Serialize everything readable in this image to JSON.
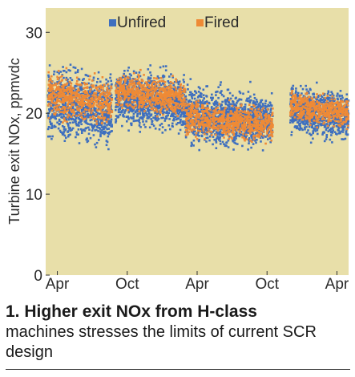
{
  "chart_data": {
    "type": "scatter",
    "ylabel": "Turbine exit NOx, ppmvdc",
    "ylim": [
      0,
      33
    ],
    "yticks": [
      0,
      10,
      20,
      30
    ],
    "xlim": [
      0,
      26
    ],
    "xticks": [
      {
        "label": "Apr",
        "x": 1
      },
      {
        "label": "Oct",
        "x": 7
      },
      {
        "label": "Apr",
        "x": 13
      },
      {
        "label": "Oct",
        "x": 19
      },
      {
        "label": "Apr",
        "x": 25
      }
    ],
    "plot_background": "#e8dfa9",
    "series": [
      {
        "name": "Unfired",
        "color": "#3e6fbf",
        "marker": "square"
      },
      {
        "name": "Fired",
        "color": "#ee8a36",
        "marker": "square"
      }
    ],
    "segments": [
      {
        "x_from": 0.2,
        "x_to": 5.7,
        "unfired_mean": 21.2,
        "fired_mean": 22.3,
        "spread": 5
      },
      {
        "x_from": 6.0,
        "x_to": 12.0,
        "unfired_mean": 22.0,
        "fired_mean": 22.8,
        "spread": 4
      },
      {
        "x_from": 12.0,
        "x_to": 19.5,
        "unfired_mean": 19.8,
        "fired_mean": 19.5,
        "spread": 4
      },
      {
        "x_from": 21.0,
        "x_to": 26.0,
        "unfired_mean": 20.5,
        "fired_mean": 21.0,
        "spread": 3.5
      }
    ]
  },
  "caption": {
    "title": "1. Higher exit NOx from H-class",
    "body": "machines stresses the limits of current SCR design"
  }
}
